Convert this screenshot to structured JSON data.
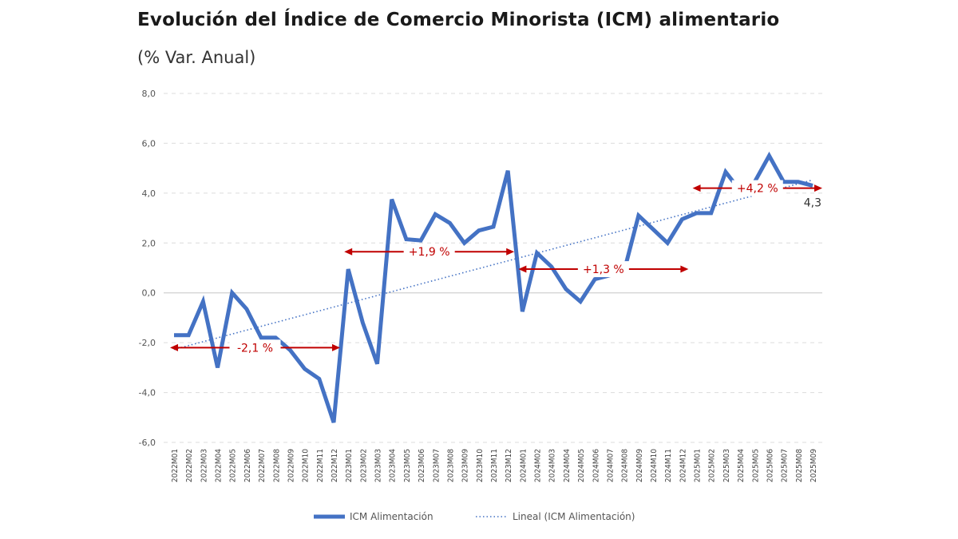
{
  "chart_data": {
    "type": "line",
    "title": "Evolución del Índice de Comercio Minorista (ICM) alimentario",
    "subtitle": "(% Var. Anual)",
    "xlabel": "",
    "ylabel": "",
    "ylim": [
      -6,
      8
    ],
    "yticks": [
      8,
      6,
      4,
      2,
      0,
      -2,
      -4,
      -6
    ],
    "ytick_labels": [
      "8,0",
      "6,0",
      "4,0",
      "2,0",
      "0,0",
      "-2,0",
      "-4,0",
      "-6,0"
    ],
    "grid": "horizontal dashed",
    "legend_position": "bottom",
    "categories": [
      "2022M01",
      "2022M02",
      "2022M03",
      "2022M04",
      "2022M05",
      "2022M06",
      "2022M07",
      "2022M08",
      "2022M09",
      "2022M10",
      "2022M11",
      "2022M12",
      "2023M01",
      "2023M02",
      "2023M03",
      "2023M04",
      "2023M05",
      "2023M06",
      "2023M07",
      "2023M08",
      "2023M09",
      "2023M10",
      "2023M11",
      "2023M12",
      "2024M01",
      "2024M02",
      "2024M03",
      "2024M04",
      "2024M05",
      "2024M06",
      "2024M07",
      "2024M08",
      "2024M09",
      "2024M10",
      "2024M11",
      "2024M12",
      "2025M01",
      "2025M02",
      "2025M03",
      "2025M04",
      "2025M05",
      "2025M06",
      "2025M07",
      "2025M08",
      "2025M09"
    ],
    "series": [
      {
        "name": "ICM Alimentación",
        "color": "#4472C4",
        "values": [
          -1.7,
          -1.7,
          -0.35,
          -3.0,
          0.0,
          -0.65,
          -1.8,
          -1.8,
          -2.3,
          -3.05,
          -3.45,
          -5.2,
          0.95,
          -1.2,
          -2.85,
          3.75,
          2.15,
          2.1,
          3.15,
          2.8,
          2.0,
          2.5,
          2.65,
          4.9,
          -0.75,
          1.6,
          1.05,
          0.15,
          -0.35,
          0.55,
          0.7,
          0.85,
          3.1,
          2.55,
          2.0,
          2.95,
          3.2,
          3.2,
          4.85,
          4.1,
          4.45,
          5.5,
          4.45,
          4.45,
          4.3
        ]
      },
      {
        "name": "Lineal (ICM Alimentación)",
        "color": "#4472C4",
        "style": "dotted",
        "trendline_of": "ICM Alimentación"
      }
    ],
    "data_labels": [
      {
        "category": "2025M09",
        "text": "4,3"
      }
    ],
    "annotations": [
      {
        "text": "-2,1 %",
        "from": "2022M01",
        "to": "2022M12",
        "y": -2.2,
        "color": "#C00000"
      },
      {
        "text": "+1,9 %",
        "from": "2023M01",
        "to": "2023M12",
        "y": 1.65,
        "color": "#C00000"
      },
      {
        "text": "+1,3 %",
        "from": "2024M01",
        "to": "2024M12",
        "y": 0.95,
        "color": "#C00000"
      },
      {
        "text": "+4,2 %",
        "from": "2025M01",
        "to": "2025M09",
        "y": 4.2,
        "color": "#C00000"
      }
    ]
  }
}
